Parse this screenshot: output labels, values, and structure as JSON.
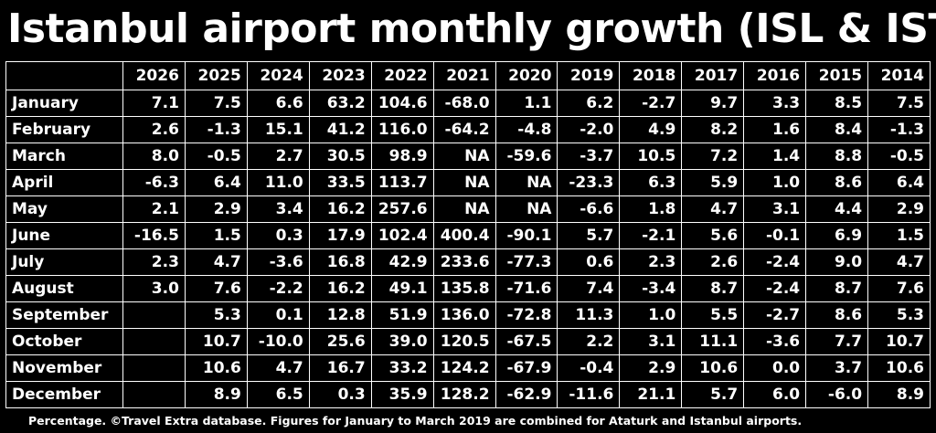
{
  "title": "Istanbul airport monthly growth (ISL & IST)",
  "footnote": "Percentage. ©Travel Extra database. Figures for January to March 2019 are combined for Ataturk and Istanbul airports.",
  "chart_data": {
    "type": "table",
    "columns": [
      "2026",
      "2025",
      "2024",
      "2023",
      "2022",
      "2021",
      "2020",
      "2019",
      "2018",
      "2017",
      "2016",
      "2015",
      "2014"
    ],
    "rows": [
      {
        "label": "January",
        "values": [
          "7.1",
          "7.5",
          "6.6",
          "63.2",
          "104.6",
          "-68.0",
          "1.1",
          "6.2",
          "-2.7",
          "9.7",
          "3.3",
          "8.5",
          "7.5"
        ]
      },
      {
        "label": "February",
        "values": [
          "2.6",
          "-1.3",
          "15.1",
          "41.2",
          "116.0",
          "-64.2",
          "-4.8",
          "-2.0",
          "4.9",
          "8.2",
          "1.6",
          "8.4",
          "-1.3"
        ]
      },
      {
        "label": "March",
        "values": [
          "8.0",
          "-0.5",
          "2.7",
          "30.5",
          "98.9",
          "NA",
          "-59.6",
          "-3.7",
          "10.5",
          "7.2",
          "1.4",
          "8.8",
          "-0.5"
        ]
      },
      {
        "label": "April",
        "values": [
          "-6.3",
          "6.4",
          "11.0",
          "33.5",
          "113.7",
          "NA",
          "NA",
          "-23.3",
          "6.3",
          "5.9",
          "1.0",
          "8.6",
          "6.4"
        ]
      },
      {
        "label": "May",
        "values": [
          "2.1",
          "2.9",
          "3.4",
          "16.2",
          "257.6",
          "NA",
          "NA",
          "-6.6",
          "1.8",
          "4.7",
          "3.1",
          "4.4",
          "2.9"
        ]
      },
      {
        "label": "June",
        "values": [
          "-16.5",
          "1.5",
          "0.3",
          "17.9",
          "102.4",
          "400.4",
          "-90.1",
          "5.7",
          "-2.1",
          "5.6",
          "-0.1",
          "6.9",
          "1.5"
        ]
      },
      {
        "label": "July",
        "values": [
          "2.3",
          "4.7",
          "-3.6",
          "16.8",
          "42.9",
          "233.6",
          "-77.3",
          "0.6",
          "2.3",
          "2.6",
          "-2.4",
          "9.0",
          "4.7"
        ]
      },
      {
        "label": "August",
        "values": [
          "3.0",
          "7.6",
          "-2.2",
          "16.2",
          "49.1",
          "135.8",
          "-71.6",
          "7.4",
          "-3.4",
          "8.7",
          "-2.4",
          "8.7",
          "7.6"
        ]
      },
      {
        "label": "September",
        "values": [
          "",
          "5.3",
          "0.1",
          "12.8",
          "51.9",
          "136.0",
          "-72.8",
          "11.3",
          "1.0",
          "5.5",
          "-2.7",
          "8.6",
          "5.3"
        ]
      },
      {
        "label": "October",
        "values": [
          "",
          "10.7",
          "-10.0",
          "25.6",
          "39.0",
          "120.5",
          "-67.5",
          "2.2",
          "3.1",
          "11.1",
          "-3.6",
          "7.7",
          "10.7"
        ]
      },
      {
        "label": "November",
        "values": [
          "",
          "10.6",
          "4.7",
          "16.7",
          "33.2",
          "124.2",
          "-67.9",
          "-0.4",
          "2.9",
          "10.6",
          "0.0",
          "3.7",
          "10.6"
        ]
      },
      {
        "label": "December",
        "values": [
          "",
          "8.9",
          "6.5",
          "0.3",
          "35.9",
          "128.2",
          "-62.9",
          "-11.6",
          "21.1",
          "5.7",
          "6.0",
          "-6.0",
          "8.9"
        ]
      }
    ]
  }
}
